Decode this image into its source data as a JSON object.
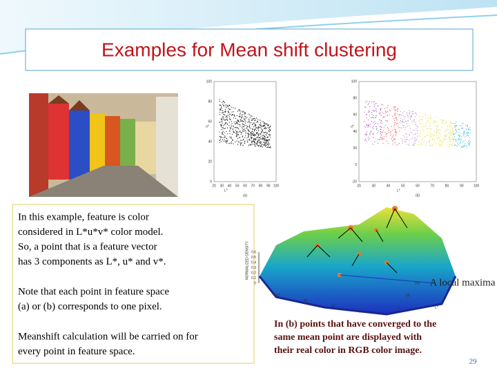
{
  "header": {
    "title": "Examples for Mean shift clustering"
  },
  "figures": {
    "scatter_a": {
      "caption": "(a)",
      "x_label": "L*",
      "y_label": "u*",
      "xticks": [
        20,
        30,
        40,
        50,
        60,
        70,
        80,
        90,
        100
      ],
      "yticks": [
        100,
        80,
        60,
        40,
        20,
        0
      ]
    },
    "scatter_b": {
      "caption": "(b)",
      "x_label": "L*",
      "y_label": "u*",
      "xticks": [
        20,
        30,
        40,
        50,
        60,
        70,
        80,
        90,
        100
      ],
      "yticks": [
        100,
        80,
        60,
        40,
        20,
        0,
        -20
      ]
    },
    "density": {
      "z_label": "NORMALIZED DENSITY",
      "zticks": [
        0,
        0.1,
        0.2,
        0.3,
        0.4,
        0.5,
        0.6
      ],
      "left_ticks": [
        60,
        40,
        20,
        0
      ],
      "right_ticks": [
        100,
        50,
        0
      ],
      "right_label": "L*"
    }
  },
  "body": {
    "paragraphs": [
      [
        "In this example, feature is color",
        "considered in L*u*v* color model.",
        "So, a point that is a feature vector",
        "has 3 components as L*, u* and v*."
      ],
      [
        "Note that each point in feature space",
        " (a) or (b) corresponds to one pixel."
      ],
      [
        "Meanshift calculation will be carried on for",
        "every point in feature space."
      ]
    ]
  },
  "annotation": "A local maxima",
  "caption": [
    "In (b) points that have converged to the",
    "same mean point are displayed with",
    "their real color in RGB color image."
  ],
  "page_number": 29
}
